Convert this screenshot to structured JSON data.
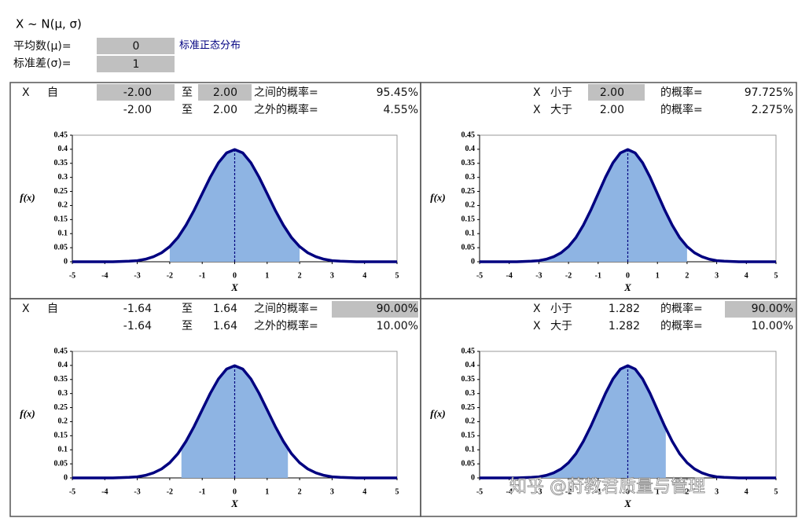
{
  "sheet": {
    "title": "X ~ N(μ, σ)",
    "mean_label": "平均数(μ)=",
    "mean": "0",
    "sd_label": "标准差(σ)=",
    "sd": "1",
    "dist_name": "标准正态分布",
    "panels": [
      {
        "rows": [
          [
            "X",
            "自",
            "-2.00",
            "至",
            "2.00",
            "之间的概率=",
            "95.45%"
          ],
          [
            "-2.00",
            "至",
            "2.00",
            "之外的概率=",
            "4.55%"
          ]
        ]
      },
      {
        "rows": [
          [
            "X",
            "小于",
            "2.00",
            "的概率=",
            "97.725%"
          ],
          [
            "X",
            "大于",
            "2.00",
            "的概率=",
            "2.275%"
          ]
        ]
      },
      {
        "rows": [
          [
            "X",
            "自",
            "-1.64",
            "至",
            "1.64",
            "之间的概率=",
            "90.00%"
          ],
          [
            "-1.64",
            "至",
            "1.64",
            "之外的概率=",
            "10.00%"
          ]
        ]
      },
      {
        "rows": [
          [
            "X",
            "小于",
            "1.282",
            "的概率=",
            "90.00%"
          ],
          [
            "X",
            "大于",
            "1.282",
            "的概率=",
            "10.00%"
          ]
        ]
      }
    ]
  },
  "watermark": "知乎 @莳教君质量与管理",
  "chart_data": [
    {
      "type": "area",
      "y_label": "f(x)",
      "x_label": "X",
      "color": "#000080",
      "fill": "#8eb4e3",
      "mean": 0,
      "shaded_range": [
        -2,
        2
      ],
      "x": [
        -5,
        -4.75,
        -4.5,
        -4.25,
        -4,
        -3.75,
        -3.5,
        -3.25,
        -3,
        -2.75,
        -2.5,
        -2.25,
        -2,
        -1.75,
        -1.5,
        -1.25,
        -1,
        -0.75,
        -0.5,
        -0.25,
        0,
        0.25,
        0.5,
        0.75,
        1,
        1.25,
        1.5,
        1.75,
        2,
        2.25,
        2.5,
        2.75,
        3,
        3.25,
        3.5,
        3.75,
        4,
        4.25,
        4.5,
        4.75,
        5
      ],
      "values": [
        0,
        0,
        0,
        0,
        0,
        0,
        0.001,
        0.002,
        0.004,
        0.009,
        0.018,
        0.032,
        0.054,
        0.086,
        0.13,
        0.183,
        0.242,
        0.301,
        0.352,
        0.387,
        0.399,
        0.387,
        0.352,
        0.301,
        0.242,
        0.183,
        0.13,
        0.086,
        0.054,
        0.032,
        0.018,
        0.009,
        0.004,
        0.002,
        0.001,
        0,
        0,
        0,
        0,
        0,
        0
      ],
      "xlim": [
        -5,
        5
      ],
      "xticks": [
        -5,
        -4,
        -3,
        -2,
        -1,
        0,
        1,
        2,
        3,
        4,
        5
      ],
      "ylim": [
        0,
        0.45
      ],
      "yticks": [
        0,
        0.05,
        0.1,
        0.15,
        0.2,
        0.25,
        0.3,
        0.35,
        0.4,
        0.45
      ]
    },
    {
      "type": "area",
      "y_label": "f(x)",
      "x_label": "X",
      "color": "#000080",
      "fill": "#8eb4e3",
      "mean": 0,
      "shaded_range": [
        -5,
        2
      ],
      "x": [
        -5,
        -4.75,
        -4.5,
        -4.25,
        -4,
        -3.75,
        -3.5,
        -3.25,
        -3,
        -2.75,
        -2.5,
        -2.25,
        -2,
        -1.75,
        -1.5,
        -1.25,
        -1,
        -0.75,
        -0.5,
        -0.25,
        0,
        0.25,
        0.5,
        0.75,
        1,
        1.25,
        1.5,
        1.75,
        2,
        2.25,
        2.5,
        2.75,
        3,
        3.25,
        3.5,
        3.75,
        4,
        4.25,
        4.5,
        4.75,
        5
      ],
      "values": [
        0,
        0,
        0,
        0,
        0,
        0,
        0.001,
        0.002,
        0.004,
        0.009,
        0.018,
        0.032,
        0.054,
        0.086,
        0.13,
        0.183,
        0.242,
        0.301,
        0.352,
        0.387,
        0.399,
        0.387,
        0.352,
        0.301,
        0.242,
        0.183,
        0.13,
        0.086,
        0.054,
        0.032,
        0.018,
        0.009,
        0.004,
        0.002,
        0.001,
        0,
        0,
        0,
        0,
        0,
        0
      ],
      "xlim": [
        -5,
        5
      ],
      "xticks": [
        -5,
        -4,
        -3,
        -2,
        -1,
        0,
        1,
        2,
        3,
        4,
        5
      ],
      "ylim": [
        0,
        0.45
      ],
      "yticks": [
        0,
        0.05,
        0.1,
        0.15,
        0.2,
        0.25,
        0.3,
        0.35,
        0.4,
        0.45
      ]
    },
    {
      "type": "area",
      "y_label": "f(x)",
      "x_label": "X",
      "color": "#000080",
      "fill": "#8eb4e3",
      "mean": 0,
      "shaded_range": [
        -1.64,
        1.64
      ],
      "x": [
        -5,
        -4.75,
        -4.5,
        -4.25,
        -4,
        -3.75,
        -3.5,
        -3.25,
        -3,
        -2.75,
        -2.5,
        -2.25,
        -2,
        -1.75,
        -1.5,
        -1.25,
        -1,
        -0.75,
        -0.5,
        -0.25,
        0,
        0.25,
        0.5,
        0.75,
        1,
        1.25,
        1.5,
        1.75,
        2,
        2.25,
        2.5,
        2.75,
        3,
        3.25,
        3.5,
        3.75,
        4,
        4.25,
        4.5,
        4.75,
        5
      ],
      "values": [
        0,
        0,
        0,
        0,
        0,
        0,
        0.001,
        0.002,
        0.004,
        0.009,
        0.018,
        0.032,
        0.054,
        0.086,
        0.13,
        0.183,
        0.242,
        0.301,
        0.352,
        0.387,
        0.399,
        0.387,
        0.352,
        0.301,
        0.242,
        0.183,
        0.13,
        0.086,
        0.054,
        0.032,
        0.018,
        0.009,
        0.004,
        0.002,
        0.001,
        0,
        0,
        0,
        0,
        0,
        0
      ],
      "xlim": [
        -5,
        5
      ],
      "xticks": [
        -5,
        -4,
        -3,
        -2,
        -1,
        0,
        1,
        2,
        3,
        4,
        5
      ],
      "ylim": [
        0,
        0.45
      ],
      "yticks": [
        0,
        0.05,
        0.1,
        0.15,
        0.2,
        0.25,
        0.3,
        0.35,
        0.4,
        0.45
      ]
    },
    {
      "type": "area",
      "y_label": "f(x)",
      "x_label": "X",
      "color": "#000080",
      "fill": "#8eb4e3",
      "mean": 0,
      "shaded_range": [
        -5,
        1.282
      ],
      "x": [
        -5,
        -4.75,
        -4.5,
        -4.25,
        -4,
        -3.75,
        -3.5,
        -3.25,
        -3,
        -2.75,
        -2.5,
        -2.25,
        -2,
        -1.75,
        -1.5,
        -1.25,
        -1,
        -0.75,
        -0.5,
        -0.25,
        0,
        0.25,
        0.5,
        0.75,
        1,
        1.25,
        1.5,
        1.75,
        2,
        2.25,
        2.5,
        2.75,
        3,
        3.25,
        3.5,
        3.75,
        4,
        4.25,
        4.5,
        4.75,
        5
      ],
      "values": [
        0,
        0,
        0,
        0,
        0,
        0,
        0.001,
        0.002,
        0.004,
        0.009,
        0.018,
        0.032,
        0.054,
        0.086,
        0.13,
        0.183,
        0.242,
        0.301,
        0.352,
        0.387,
        0.399,
        0.387,
        0.352,
        0.301,
        0.242,
        0.183,
        0.13,
        0.086,
        0.054,
        0.032,
        0.018,
        0.009,
        0.004,
        0.002,
        0.001,
        0,
        0,
        0,
        0,
        0,
        0
      ],
      "xlim": [
        -5,
        5
      ],
      "xticks": [
        -5,
        -4,
        -3,
        -2,
        -1,
        0,
        1,
        2,
        3,
        4,
        5
      ],
      "ylim": [
        0,
        0.45
      ],
      "yticks": [
        0,
        0.05,
        0.1,
        0.15,
        0.2,
        0.25,
        0.3,
        0.35,
        0.4,
        0.45
      ]
    }
  ]
}
